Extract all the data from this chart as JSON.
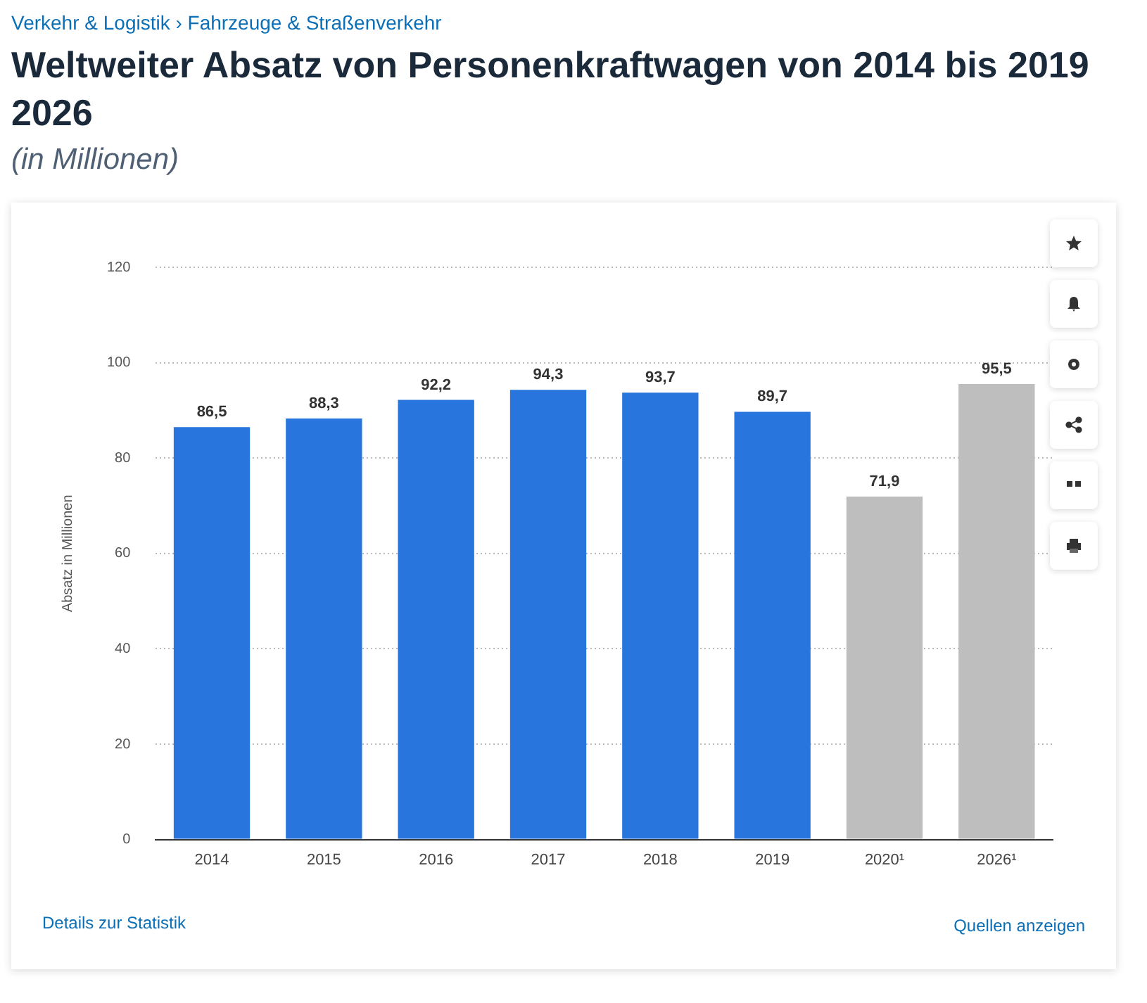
{
  "chart_data": {
    "type": "bar",
    "title": "Weltweiter Absatz von Personenkraftwagen von 2014 bis 2019 2026",
    "subtitle": "(in Millionen)",
    "ylabel": "Absatz in Millionen",
    "categories": [
      "2014",
      "2015",
      "2016",
      "2017",
      "2018",
      "2019",
      "2020¹",
      "2026¹"
    ],
    "values": [
      86.5,
      88.3,
      92.2,
      94.3,
      93.7,
      89.7,
      71.9,
      95.5
    ],
    "colors": [
      "#2876dd",
      "#2876dd",
      "#2876dd",
      "#2876dd",
      "#2876dd",
      "#2876dd",
      "#bebebe",
      "#bebebe"
    ],
    "ylim": [
      0,
      120
    ],
    "yticks": [
      0,
      20,
      40,
      60,
      80,
      100,
      120
    ],
    "grid": "y",
    "legend": false,
    "value_labels": [
      "86,5",
      "88,3",
      "92,2",
      "94,3",
      "93,7",
      "89,7",
      "71,9",
      "95,5"
    ],
    "annotations": [
      "Verkehr & Logistik › Fahrzeuge & Straßenverkehr",
      "Details zur Statistik",
      "Quellen anzeigen"
    ]
  }
}
